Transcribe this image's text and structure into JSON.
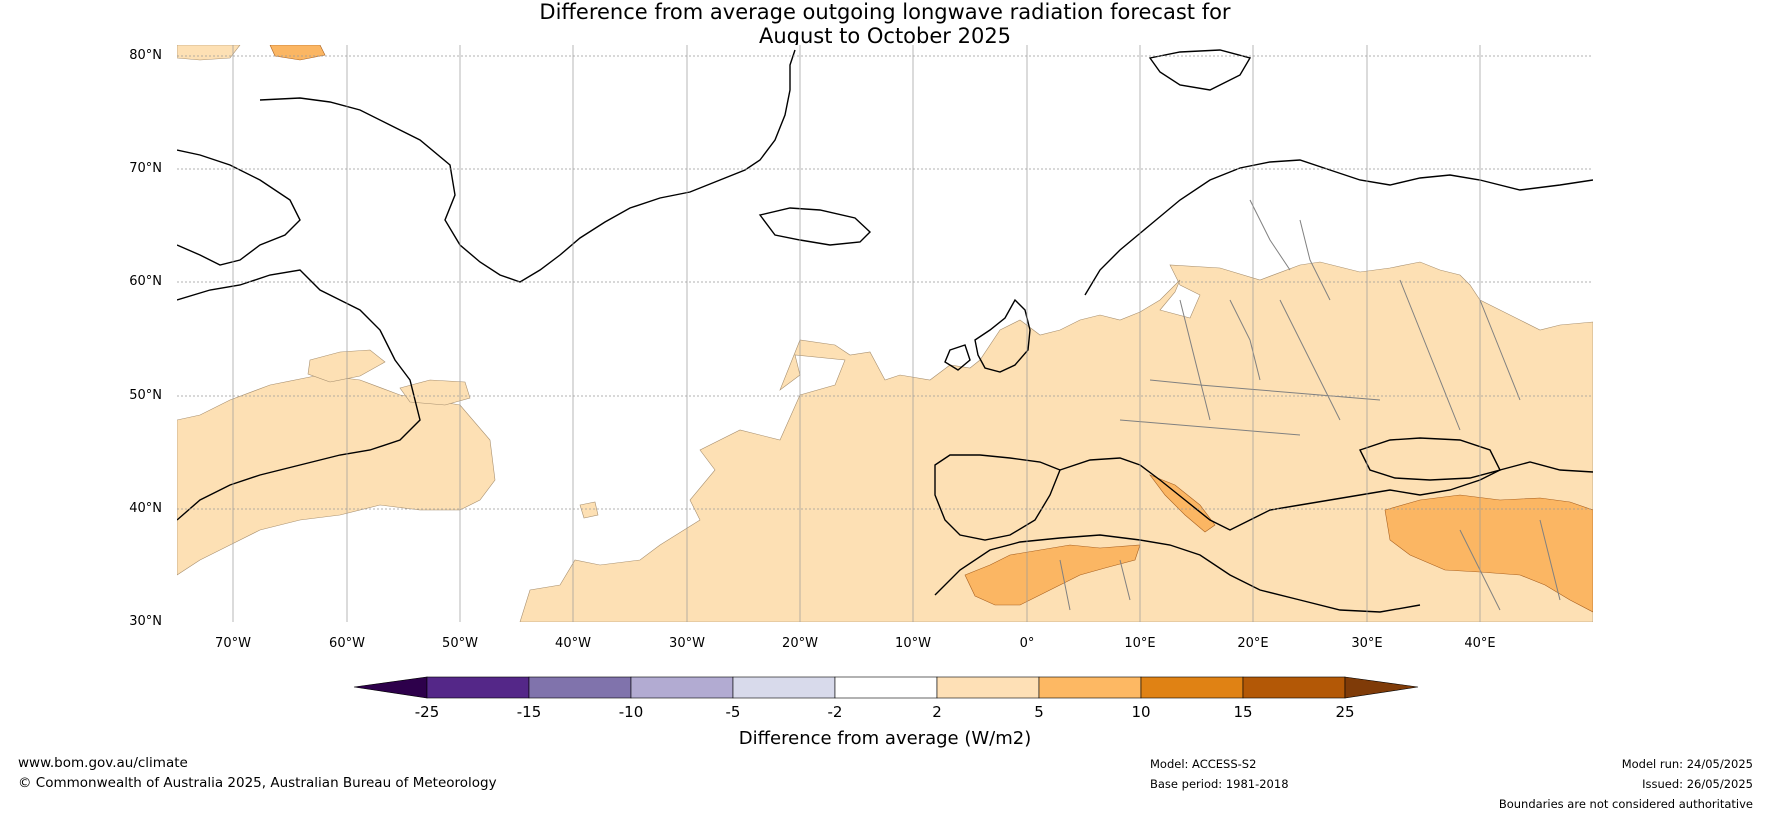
{
  "title": {
    "line1": "Difference from average outgoing longwave radiation forecast for",
    "line2": "August to October 2025"
  },
  "map": {
    "lat_labels": [
      "80°N",
      "70°N",
      "60°N",
      "50°N",
      "40°N",
      "30°N"
    ],
    "lon_labels": [
      "70°W",
      "60°W",
      "50°W",
      "40°W",
      "30°W",
      "20°W",
      "10°W",
      "0°",
      "10°E",
      "20°E",
      "30°E",
      "40°E"
    ],
    "colors": {
      "pos_2_5": "#fde0b4",
      "pos_5_10": "#fbb663",
      "coast": "#000000",
      "border": "#808080"
    }
  },
  "colorbar": {
    "ticks": [
      "-25",
      "-15",
      "-10",
      "-5",
      "-2",
      "2",
      "5",
      "10",
      "15",
      "25"
    ],
    "colors": [
      "#2d004b",
      "#542788",
      "#8073ac",
      "#b2abd2",
      "#d8daeb",
      "#ffffff",
      "#fee0b6",
      "#fdb863",
      "#e08214",
      "#b35806",
      "#7f3b08"
    ],
    "label": "Difference from average (W/m2)"
  },
  "footer": {
    "url": "www.bom.gov.au/climate",
    "copyright": "© Commonwealth of Australia 2025, Australian Bureau of Meteorology",
    "model": "Model: ACCESS-S2",
    "base_period": "Base period: 1981-2018",
    "model_run": "Model run: 24/05/2025",
    "issued": "Issued: 26/05/2025",
    "disclaimer": "Boundaries are not considered authoritative"
  }
}
